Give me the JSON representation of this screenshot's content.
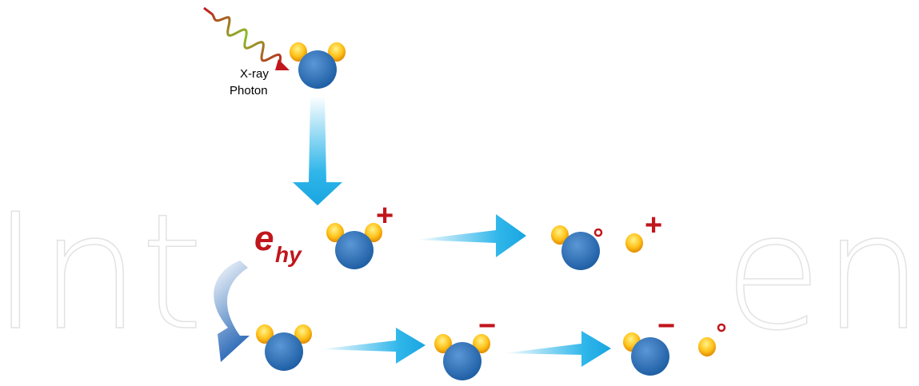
{
  "photon": {
    "line1": "X-ray",
    "line2": "Photon"
  },
  "electron": {
    "symbol": "e",
    "subscript": "hy"
  },
  "charges": [
    "+",
    "+",
    "−",
    "−"
  ],
  "watermark": [
    "Int",
    "en"
  ]
}
